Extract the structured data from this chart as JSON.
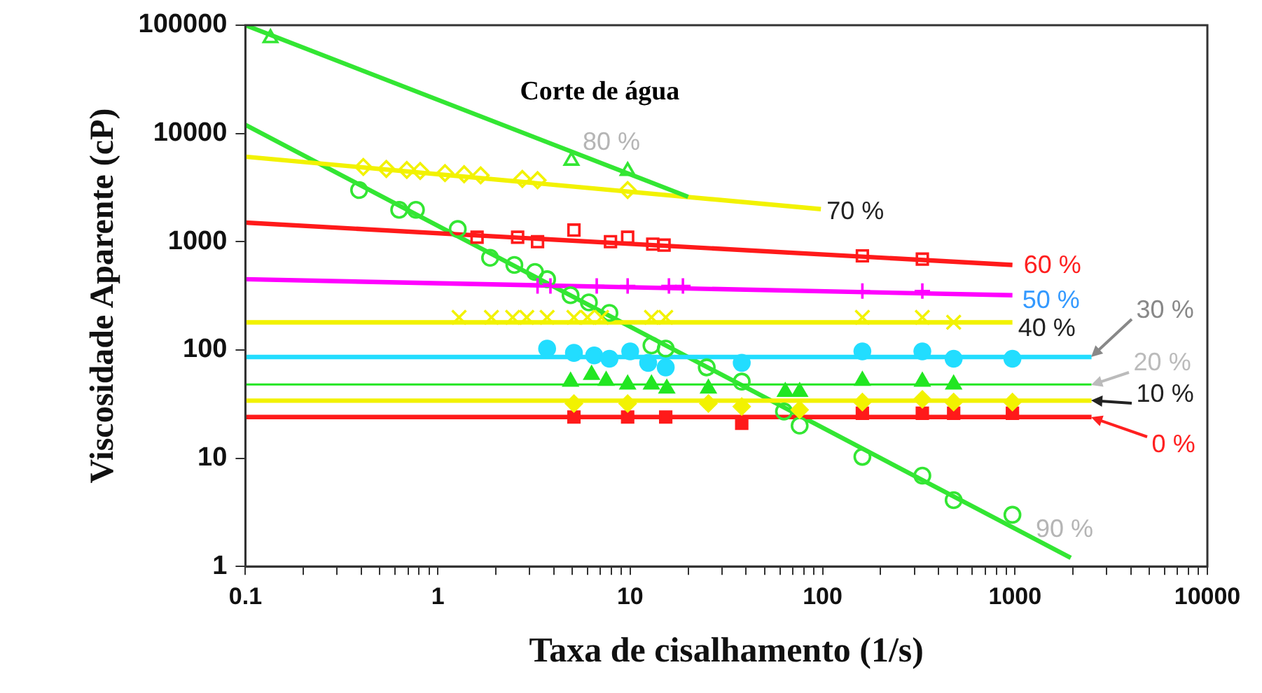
{
  "chart_data": {
    "type": "scatter",
    "xlabel": "Taxa de cisalhamento (1/s)",
    "ylabel": "Viscosidade Aparente (cP)",
    "log": "xy",
    "grid": false,
    "legend": false,
    "xlim": [
      0.1,
      10000
    ],
    "ylim": [
      1,
      100000
    ],
    "xticks": [
      0.1,
      {
        "value": 0.2,
        "label": null
      },
      {
        "value": 0.3,
        "label": null
      },
      {
        "value": 0.4,
        "label": null
      },
      {
        "value": 0.5,
        "label": null
      },
      {
        "value": 0.6,
        "label": null
      },
      {
        "value": 0.7,
        "label": null
      },
      {
        "value": 0.8,
        "label": null
      },
      {
        "value": 0.9,
        "label": null
      },
      1,
      {
        "value": 2,
        "label": null
      },
      {
        "value": 3,
        "label": null
      },
      {
        "value": 4,
        "label": null
      },
      {
        "value": 5,
        "label": null
      },
      {
        "value": 6,
        "label": null
      },
      {
        "value": 7,
        "label": null
      },
      {
        "value": 8,
        "label": null
      },
      {
        "value": 9,
        "label": null
      },
      10,
      {
        "value": 20,
        "label": null
      },
      {
        "value": 30,
        "label": null
      },
      {
        "value": 40,
        "label": null
      },
      {
        "value": 50,
        "label": null
      },
      {
        "value": 60,
        "label": null
      },
      {
        "value": 70,
        "label": null
      },
      {
        "value": 80,
        "label": null
      },
      {
        "value": 90,
        "label": null
      },
      100,
      {
        "value": 200,
        "label": null
      },
      {
        "value": 300,
        "label": null
      },
      {
        "value": 400,
        "label": null
      },
      {
        "value": 500,
        "label": null
      },
      {
        "value": 600,
        "label": null
      },
      {
        "value": 700,
        "label": null
      },
      {
        "value": 800,
        "label": null
      },
      {
        "value": 900,
        "label": null
      },
      1000,
      {
        "value": 2000,
        "label": null
      },
      {
        "value": 3000,
        "label": null
      },
      {
        "value": 4000,
        "label": null
      },
      {
        "value": 5000,
        "label": null
      },
      {
        "value": 6000,
        "label": null
      },
      {
        "value": 7000,
        "label": null
      },
      {
        "value": 8000,
        "label": null
      },
      {
        "value": 9000,
        "label": null
      },
      10000
    ],
    "yticks": [
      1,
      10,
      100,
      1000,
      10000,
      100000
    ],
    "annotations": [
      "Corte de água",
      {
        "text": "80 %",
        "x": 4.95,
        "y": 5600
      },
      {
        "text": "70 %",
        "x": 98,
        "y": 2000
      },
      {
        "text": "60 %",
        "x": 970,
        "y": 610
      },
      {
        "text": "50 %",
        "x": 970,
        "y": 320
      },
      {
        "text": "40 %",
        "x": 970,
        "y": 180
      },
      {
        "text": "30 %",
        "x": 2500,
        "y": 86
      },
      {
        "text": "20 %",
        "x": 2500,
        "y": 48
      },
      {
        "text": "10 %",
        "x": 2500,
        "y": 34
      },
      {
        "text": "0 %",
        "x": 2500,
        "y": 24
      },
      {
        "text": "90 %",
        "x": 1950,
        "y": 1.2
      }
    ],
    "series": [
      {
        "type": "scatter",
        "color": "#33e633",
        "marker": "triangle",
        "x": [
          0.135,
          4.95,
          9.7
        ],
        "values": [
          76000,
          5600,
          4500
        ]
      },
      {
        "type": "line",
        "color": "#33e633",
        "marker": "none",
        "x": [
          0.1,
          20
        ],
        "values": [
          100000,
          2600
        ]
      },
      {
        "type": "scatter",
        "color": "#f2f200",
        "marker": "diamond",
        "x": [
          0.41,
          0.54,
          0.69,
          0.81,
          1.09,
          1.37,
          1.67,
          2.75,
          3.3,
          9.7
        ],
        "values": [
          4900,
          4700,
          4600,
          4500,
          4300,
          4200,
          4100,
          3800,
          3700,
          3000
        ]
      },
      {
        "type": "line",
        "color": "#f2f200",
        "marker": "none",
        "x": [
          0.1,
          98
        ],
        "values": [
          6100,
          2000
        ]
      },
      {
        "type": "scatter",
        "color": "#ff1a1a",
        "marker": "square",
        "x": [
          1.6,
          2.6,
          3.3,
          5.1,
          7.9,
          9.7,
          13.1,
          15,
          161,
          330
        ],
        "values": [
          1100,
          1100,
          1000,
          1280,
          1000,
          1100,
          950,
          930,
          740,
          690
        ]
      },
      {
        "type": "line",
        "color": "#ff1a1a",
        "marker": "none",
        "x": [
          0.1,
          970
        ],
        "values": [
          1500,
          610
        ]
      },
      {
        "type": "scatter",
        "color": "#ff00ff",
        "marker": "cross",
        "x": [
          3.3,
          3.85,
          6.7,
          9.7,
          15.9,
          18.8,
          161,
          330
        ],
        "values": [
          390,
          390,
          390,
          390,
          390,
          390,
          350,
          350
        ]
      },
      {
        "type": "line",
        "color": "#ff00ff",
        "marker": "none",
        "x": [
          0.1,
          970
        ],
        "values": [
          450,
          320
        ]
      },
      {
        "type": "scatter",
        "color": "#f2f200",
        "marker": "cross",
        "x": [
          1.29,
          1.9,
          2.45,
          2.9,
          3.7,
          5.1,
          6,
          7.1,
          12.9,
          15.3,
          161,
          330,
          480
        ],
        "values": [
          200,
          200,
          200,
          200,
          200,
          200,
          200,
          200,
          200,
          200,
          200,
          200,
          180
        ]
      },
      {
        "type": "line",
        "color": "#f2f200",
        "marker": "none",
        "x": [
          0.1,
          970
        ],
        "values": [
          180,
          180
        ]
      },
      {
        "type": "scatter",
        "color": "#22ddff",
        "marker": "circle",
        "x": [
          3.7,
          5.1,
          6.5,
          7.8,
          10,
          12.4,
          15.3,
          38,
          161,
          330,
          480,
          970
        ],
        "values": [
          103,
          94,
          89,
          83,
          97,
          76,
          69,
          76,
          97,
          97,
          83,
          83
        ]
      },
      {
        "type": "line",
        "color": "#22ddff",
        "marker": "none",
        "x": [
          0.1,
          2500
        ],
        "values": [
          86,
          86
        ]
      },
      {
        "type": "scatter",
        "color": "#22e622",
        "marker": "triangle",
        "x": [
          4.9,
          6.3,
          7.5,
          9.7,
          12.9,
          15.5,
          25.5,
          64,
          76,
          161,
          330,
          480
        ],
        "values": [
          51,
          59,
          52,
          48,
          48,
          44,
          44,
          41,
          41,
          52,
          51,
          48
        ]
      },
      {
        "type": "line",
        "color": "#22e622",
        "marker": "none",
        "x": [
          0.1,
          2500
        ],
        "values": [
          48,
          48
        ]
      },
      {
        "type": "scatter",
        "color": "#f2f200",
        "marker": "diamond",
        "x": [
          5.1,
          9.7,
          25.5,
          38,
          76,
          161,
          330,
          480,
          970
        ],
        "values": [
          32,
          32,
          32,
          30,
          28,
          33,
          35,
          33,
          33
        ]
      },
      {
        "type": "line",
        "color": "#f2f200",
        "marker": "none",
        "x": [
          0.1,
          2500
        ],
        "values": [
          34,
          34
        ]
      },
      {
        "type": "scatter",
        "color": "#ff1a1a",
        "marker": "square",
        "x": [
          5.1,
          9.7,
          15.3,
          38,
          161,
          330,
          480,
          970
        ],
        "values": [
          24,
          24,
          24,
          21,
          26,
          26,
          26,
          26
        ]
      },
      {
        "type": "line",
        "color": "#ff1a1a",
        "marker": "none",
        "x": [
          0.1,
          2500
        ],
        "values": [
          24,
          24
        ]
      },
      {
        "type": "scatter",
        "color": "#33e633",
        "marker": "circle",
        "x": [
          0.39,
          0.63,
          0.77,
          1.27,
          1.87,
          2.5,
          3.2,
          3.7,
          4.9,
          6.1,
          7.8,
          12.9,
          15.3,
          25,
          38,
          63,
          76,
          161,
          330,
          480,
          970
        ],
        "values": [
          3000,
          1970,
          1970,
          1310,
          710,
          610,
          525,
          450,
          320,
          275,
          220,
          110,
          103,
          69,
          51,
          27,
          20,
          10.3,
          6.9,
          4.1,
          3
        ]
      },
      {
        "type": "line",
        "color": "#33e633",
        "marker": "none",
        "x": [
          0.1,
          1950
        ],
        "values": [
          12000,
          1.2
        ]
      }
    ]
  }
}
